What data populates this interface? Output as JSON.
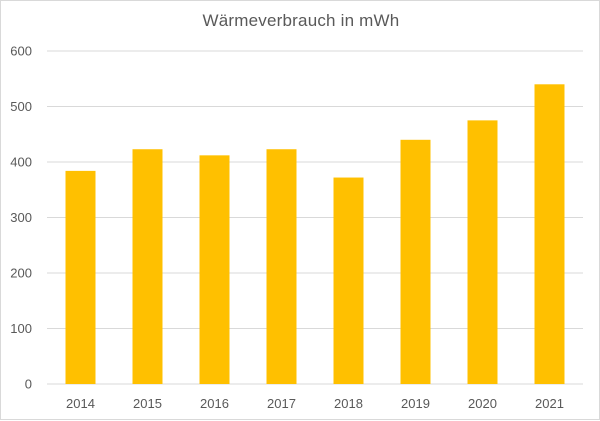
{
  "chart_data": {
    "type": "bar",
    "title": "Wärmeverbrauch in mWh",
    "xlabel": "",
    "ylabel": "",
    "categories": [
      "2014",
      "2015",
      "2016",
      "2017",
      "2018",
      "2019",
      "2020",
      "2021"
    ],
    "values": [
      384,
      423,
      412,
      423,
      372,
      440,
      475,
      540
    ],
    "ylim": [
      0,
      600
    ],
    "yticks": [
      0,
      100,
      200,
      300,
      400,
      500,
      600
    ],
    "grid": true,
    "legend": "none",
    "colors": {
      "bar": "#FFC000",
      "grid": "#D9D9D9",
      "text": "#595959"
    }
  }
}
